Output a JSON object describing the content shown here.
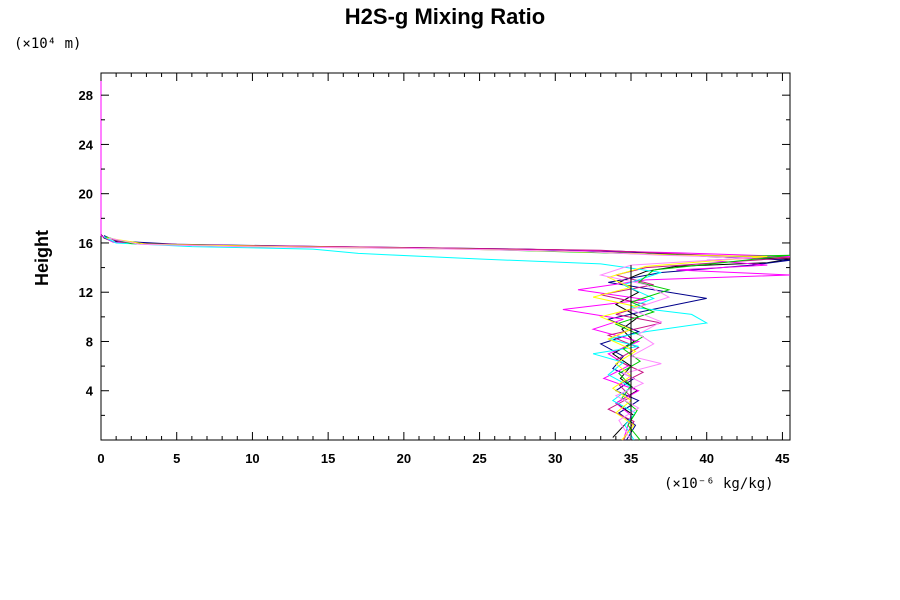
{
  "chart_data": {
    "type": "line",
    "title": "H2S-g Mixing Ratio",
    "ylabel": "Height",
    "x_unit": "(×10⁻⁶ kg/kg)",
    "y_unit": "(×10⁴ m)",
    "xlim": [
      0,
      45.5
    ],
    "ylim": [
      0,
      29.8
    ],
    "x_ticks": [
      0,
      5,
      10,
      15,
      20,
      25,
      30,
      35,
      40,
      45
    ],
    "y_ticks": [
      4,
      8,
      12,
      16,
      20,
      24,
      28
    ],
    "reference_line": {
      "x": 35,
      "y_range": [
        0,
        14.2
      ]
    },
    "series": [
      {
        "color": "#000000",
        "points": [
          [
            0,
            29.8
          ],
          [
            0,
            16.7
          ],
          [
            0.2,
            16.4
          ],
          [
            0.8,
            16.1
          ],
          [
            3,
            15.9
          ],
          [
            10,
            15.75
          ],
          [
            20,
            15.6
          ],
          [
            30,
            15.45
          ],
          [
            35,
            15.3
          ],
          [
            40,
            14.9
          ],
          [
            45.5,
            14.7
          ],
          [
            44,
            14.4
          ],
          [
            38,
            14.1
          ],
          [
            36,
            13.7
          ],
          [
            34.2,
            12.8
          ],
          [
            35.5,
            12.0
          ],
          [
            34.0,
            11.0
          ],
          [
            35.5,
            10.0
          ],
          [
            34.4,
            9.0
          ],
          [
            35.2,
            8.0
          ],
          [
            33.8,
            7.0
          ],
          [
            35.0,
            6.0
          ],
          [
            34.3,
            5.0
          ],
          [
            35.4,
            4.0
          ],
          [
            34.0,
            3.0
          ],
          [
            35.2,
            2.0
          ],
          [
            34.4,
            1.0
          ],
          [
            33.8,
            0.2
          ]
        ]
      },
      {
        "color": "#00008b",
        "points": [
          [
            0.2,
            16.6
          ],
          [
            1,
            16.15
          ],
          [
            5,
            15.9
          ],
          [
            15,
            15.7
          ],
          [
            28,
            15.5
          ],
          [
            36,
            15.2
          ],
          [
            42,
            14.8
          ],
          [
            45.5,
            14.6
          ],
          [
            43,
            14.2
          ],
          [
            37,
            13.6
          ],
          [
            33.5,
            12.8
          ],
          [
            40,
            11.5
          ],
          [
            36,
            10.5
          ],
          [
            33.5,
            9.8
          ],
          [
            35.5,
            8.8
          ],
          [
            33.0,
            7.8
          ],
          [
            34.5,
            6.8
          ],
          [
            33.8,
            5.8
          ],
          [
            35.2,
            5.0
          ],
          [
            34.0,
            4.0
          ],
          [
            35.5,
            3.2
          ],
          [
            34.2,
            2.2
          ],
          [
            35.3,
            1.2
          ],
          [
            34.7,
            0
          ]
        ]
      },
      {
        "color": "#ff00ff",
        "points": [
          [
            0,
            29.8
          ],
          [
            0,
            16.6
          ],
          [
            0.8,
            16.05
          ],
          [
            5,
            15.85
          ],
          [
            18,
            15.65
          ],
          [
            30,
            15.45
          ],
          [
            38,
            15.2
          ],
          [
            45.5,
            14.9
          ],
          [
            40,
            14.6
          ],
          [
            44,
            14.2
          ],
          [
            38,
            13.8
          ],
          [
            45.5,
            13.4
          ],
          [
            36,
            13.0
          ],
          [
            31.5,
            12.2
          ],
          [
            36,
            11.4
          ],
          [
            30.5,
            10.6
          ],
          [
            34.5,
            9.8
          ],
          [
            32.5,
            9.0
          ],
          [
            35.5,
            8.0
          ],
          [
            33.5,
            7.0
          ],
          [
            34.8,
            6.0
          ],
          [
            33.2,
            5.0
          ],
          [
            35.5,
            4.0
          ],
          [
            34.0,
            3.0
          ],
          [
            35.0,
            2.0
          ],
          [
            34.5,
            0
          ]
        ]
      },
      {
        "color": "#c71585",
        "points": [
          [
            0.3,
            16.5
          ],
          [
            1.5,
            16.0
          ],
          [
            8,
            15.8
          ],
          [
            22,
            15.6
          ],
          [
            33,
            15.4
          ],
          [
            40,
            15.0
          ],
          [
            45.5,
            14.8
          ],
          [
            42,
            14.5
          ],
          [
            36,
            14.0
          ],
          [
            34,
            13.4
          ],
          [
            36.5,
            12.6
          ],
          [
            33.0,
            11.8
          ],
          [
            36.0,
            11.0
          ],
          [
            34.0,
            10.2
          ],
          [
            37.0,
            9.5
          ],
          [
            33.5,
            8.5
          ],
          [
            35.5,
            7.5
          ],
          [
            34.0,
            6.5
          ],
          [
            35.8,
            5.5
          ],
          [
            34.2,
            4.5
          ],
          [
            35.0,
            3.5
          ],
          [
            33.5,
            2.5
          ],
          [
            35.2,
            1.5
          ],
          [
            34.5,
            0
          ]
        ]
      },
      {
        "color": "#00ffff",
        "points": [
          [
            0.2,
            16.5
          ],
          [
            1,
            16.0
          ],
          [
            6,
            15.7
          ],
          [
            14,
            15.5
          ],
          [
            17,
            15.15
          ],
          [
            25,
            14.7
          ],
          [
            33,
            14.3
          ],
          [
            37,
            13.6
          ],
          [
            34.5,
            12.6
          ],
          [
            36.5,
            11.5
          ],
          [
            35.0,
            10.8
          ],
          [
            39,
            10.2
          ],
          [
            40,
            9.5
          ],
          [
            36,
            8.8
          ],
          [
            33.5,
            8.2
          ],
          [
            35.5,
            7.6
          ],
          [
            32.5,
            7.0
          ],
          [
            34.5,
            6.3
          ],
          [
            33.5,
            5.3
          ],
          [
            35.0,
            4.3
          ],
          [
            33.8,
            3.2
          ],
          [
            35.3,
            2.2
          ],
          [
            34.6,
            1.2
          ],
          [
            35.2,
            0
          ]
        ]
      },
      {
        "color": "#00cc00",
        "points": [
          [
            0.3,
            16.5
          ],
          [
            2,
            15.95
          ],
          [
            10,
            15.7
          ],
          [
            24,
            15.5
          ],
          [
            33,
            15.2
          ],
          [
            42,
            14.9
          ],
          [
            45.5,
            15.0
          ],
          [
            41,
            14.4
          ],
          [
            36.5,
            13.8
          ],
          [
            35.5,
            12.8
          ],
          [
            37.5,
            12.2
          ],
          [
            35.0,
            11.2
          ],
          [
            36.5,
            10.4
          ],
          [
            34.0,
            9.4
          ],
          [
            35.8,
            8.4
          ],
          [
            34.5,
            7.4
          ],
          [
            35.6,
            6.4
          ],
          [
            34.2,
            5.4
          ],
          [
            35.0,
            4.4
          ],
          [
            34.4,
            3.4
          ],
          [
            35.4,
            2.4
          ],
          [
            34.8,
            1.2
          ],
          [
            35.6,
            0
          ]
        ]
      },
      {
        "color": "#ffff00",
        "points": [
          [
            0.4,
            16.4
          ],
          [
            3,
            15.9
          ],
          [
            12,
            15.7
          ],
          [
            26,
            15.45
          ],
          [
            33,
            15.25
          ],
          [
            38,
            15.0
          ],
          [
            44,
            14.9
          ],
          [
            40,
            14.5
          ],
          [
            36,
            14.1
          ],
          [
            33.5,
            13.2
          ],
          [
            35.0,
            12.4
          ],
          [
            32.5,
            11.6
          ],
          [
            35.5,
            10.8
          ],
          [
            33.0,
            10.0
          ],
          [
            35.0,
            9.0
          ],
          [
            33.5,
            8.2
          ],
          [
            35.3,
            7.2
          ],
          [
            34.0,
            6.2
          ],
          [
            35.0,
            5.2
          ],
          [
            33.8,
            4.2
          ],
          [
            35.0,
            3.2
          ],
          [
            34.0,
            2.2
          ],
          [
            35.2,
            1.2
          ],
          [
            34.4,
            0
          ]
        ]
      },
      {
        "color": "#ff88ff",
        "points": [
          [
            0.5,
            16.4
          ],
          [
            2.5,
            15.9
          ],
          [
            9,
            15.7
          ],
          [
            21,
            15.55
          ],
          [
            32,
            15.3
          ],
          [
            37,
            15.0
          ],
          [
            43,
            14.8
          ],
          [
            39,
            14.5
          ],
          [
            35,
            14.2
          ],
          [
            33.0,
            13.4
          ],
          [
            36.0,
            12.6
          ],
          [
            37.5,
            11.6
          ],
          [
            35.0,
            10.6
          ],
          [
            37.0,
            9.6
          ],
          [
            35.5,
            8.6
          ],
          [
            36.5,
            7.8
          ],
          [
            35.0,
            6.8
          ],
          [
            37.0,
            6.2
          ],
          [
            34.5,
            5.4
          ],
          [
            35.8,
            4.6
          ],
          [
            34.0,
            3.6
          ],
          [
            35.5,
            2.6
          ],
          [
            34.2,
            1.6
          ],
          [
            35.0,
            0
          ]
        ]
      }
    ]
  }
}
